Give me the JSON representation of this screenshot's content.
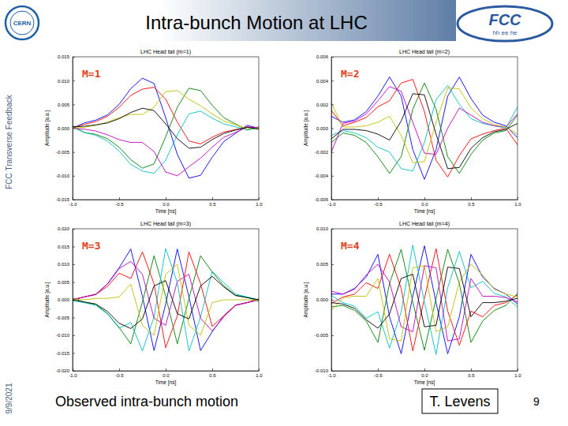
{
  "slide": {
    "title": "Intra-bunch Motion at LHC",
    "side_text": "FCC Transverse Feedback",
    "date": "9/9/2021",
    "caption": "Observed intra-bunch motion",
    "author": "T. Levens",
    "page": "9",
    "logo_left": "CERN",
    "logo_right": "FCC",
    "logo_right_sub": "hh ee he"
  },
  "chart_data": [
    {
      "type": "line",
      "title": "LHC Head tail (m=1)",
      "annotation": "M=1",
      "x_label": "Time [ns]",
      "y_label": "Amplitude [a.u.]",
      "x": [
        -1,
        -0.875,
        -0.75,
        -0.625,
        -0.5,
        -0.375,
        -0.25,
        -0.125,
        0,
        0.125,
        0.25,
        0.375,
        0.5,
        0.625,
        0.75,
        0.875,
        1
      ],
      "xlim": [
        -1,
        1
      ],
      "xticks": [
        {
          "value": -1,
          "label": "-1.0"
        },
        -0.5,
        {
          "value": 0,
          "label": "0.0"
        },
        0.5,
        {
          "value": 1,
          "label": "1.0"
        }
      ],
      "ylim": [
        -0.015,
        0.015
      ],
      "yticks": [
        -0.015,
        {
          "value": -0.01,
          "label": "-0.010"
        },
        -0.005,
        {
          "value": 0,
          "label": "0.000"
        },
        0.005,
        {
          "value": 0.01,
          "label": "0.010"
        },
        0.015
      ],
      "series": [
        {
          "color": "#0000ff",
          "values": [
            0,
            0.0011,
            0.0017,
            0.0028,
            0.005,
            0.0083,
            0.0105,
            0.0094,
            0.0022,
            -0.0055,
            -0.0105,
            -0.0099,
            -0.0061,
            -0.0028,
            -0.0011,
            0.0006,
            0
          ]
        },
        {
          "color": "#008000",
          "values": [
            0.0005,
            -0.0009,
            -0.0013,
            -0.0022,
            -0.004,
            -0.0066,
            -0.0084,
            -0.0075,
            -0.0018,
            0.0044,
            0.0084,
            0.0079,
            0.0048,
            0.0022,
            0.0009,
            -0.0004,
            0.0003
          ]
        },
        {
          "color": "#ff0000",
          "values": [
            0,
            0.0008,
            0.0014,
            0.0025,
            0.0044,
            0.0069,
            0.0082,
            0.0086,
            0.0061,
            0.0013,
            -0.0027,
            -0.0033,
            -0.0019,
            -0.0008,
            -0.0003,
            0.0003,
            0
          ]
        },
        {
          "color": "#00bfbf",
          "values": [
            0.0002,
            -0.0009,
            -0.0015,
            -0.0027,
            -0.0048,
            -0.0076,
            -0.009,
            -0.0095,
            -0.0067,
            -0.0014,
            0.003,
            0.0036,
            0.0021,
            0.0009,
            0.0003,
            -0.0003,
            -0.0001
          ]
        },
        {
          "color": "#bf00bf",
          "values": [
            0,
            -0.0002,
            -0.0006,
            -0.0014,
            -0.0024,
            -0.003,
            -0.003,
            -0.0049,
            -0.0092,
            -0.01,
            -0.0081,
            -0.0063,
            -0.004,
            -0.0019,
            -0.0009,
            0.0002,
            0.0001
          ]
        },
        {
          "color": "#bfbf00",
          "values": [
            0,
            0.0002,
            0.0006,
            0.0013,
            0.0022,
            0.0029,
            0.0029,
            0.0044,
            0.0077,
            0.0079,
            0.0061,
            0.0047,
            0.003,
            0.0015,
            0.0007,
            -0.0001,
            0
          ]
        },
        {
          "color": "#000000",
          "values": [
            0.0003,
            0.0004,
            0.0007,
            0.0011,
            0.002,
            0.0033,
            0.0042,
            0.0037,
            0.0009,
            -0.0022,
            -0.0042,
            -0.004,
            -0.0024,
            -0.0011,
            -0.0004,
            0.0002,
            -0.0002
          ]
        }
      ]
    },
    {
      "type": "line",
      "title": "LHC Head tail (m=2)",
      "annotation": "M=2",
      "x_label": "Time [ns]",
      "y_label": "Amplitude [a.u.]",
      "x": [
        -1,
        -0.875,
        -0.75,
        -0.625,
        -0.5,
        -0.375,
        -0.25,
        -0.125,
        0,
        0.125,
        0.25,
        0.375,
        0.5,
        0.625,
        0.75,
        0.875,
        1
      ],
      "xlim": [
        -1,
        1
      ],
      "xticks": [
        {
          "value": -1,
          "label": "-1.0"
        },
        -0.5,
        {
          "value": 0,
          "label": "0.0"
        },
        0.5,
        {
          "value": 1,
          "label": "1.0"
        }
      ],
      "ylim": [
        -0.006,
        0.006
      ],
      "yticks": [
        -0.006,
        -0.004,
        -0.002,
        {
          "value": 0,
          "label": "0.000"
        },
        0.002,
        0.004,
        0.006
      ],
      "series": [
        {
          "color": "#0000ff",
          "values": [
            0.001,
            0.0005,
            0.0007,
            0.0014,
            0.0027,
            0.0043,
            0.0027,
            -0.0018,
            -0.0043,
            -0.0018,
            0.0027,
            0.0043,
            0.0025,
            0.0011,
            0.0005,
            0.0002,
            -0.0008
          ]
        },
        {
          "color": "#008000",
          "values": [
            -0.0012,
            -0.0004,
            -0.0006,
            -0.0012,
            -0.0024,
            -0.0038,
            -0.0024,
            0.0016,
            0.0038,
            0.0016,
            -0.0024,
            -0.0038,
            -0.0022,
            -0.001,
            -0.0004,
            -0.0002,
            0.0011
          ]
        },
        {
          "color": "#ff0000",
          "values": [
            0.0015,
            0.0002,
            0.0005,
            0.0009,
            0.0018,
            0.0023,
            0.0038,
            0.0041,
            0.0014,
            -0.0027,
            -0.0041,
            -0.0023,
            -0.0009,
            -0.0005,
            -0.0002,
            0,
            -0.0014
          ]
        },
        {
          "color": "#00bfbf",
          "values": [
            -0.0006,
            -0.0002,
            -0.0004,
            -0.0008,
            -0.0016,
            -0.002,
            -0.0034,
            -0.0036,
            -0.0012,
            0.0024,
            0.0036,
            0.002,
            0.0008,
            0.0004,
            0.0002,
            0,
            0.0018
          ]
        },
        {
          "color": "#bf00bf",
          "values": [
            -0.002,
            0.0004,
            0.0006,
            0.0012,
            0.0023,
            0.0035,
            0.0031,
            0.0005,
            -0.0021,
            -0.0022,
            0,
            0.0017,
            0.0011,
            0.0005,
            0.0002,
            0.0001,
            0.0012
          ]
        },
        {
          "color": "#bfbf00",
          "values": [
            0.0021,
            0.0001,
            0.0001,
            0.0002,
            0.0005,
            0.001,
            -0.0006,
            -0.0029,
            -0.0028,
            0.0005,
            0.0034,
            0.0033,
            0.0017,
            0.0008,
            0.0003,
            0.0001,
            -0.0005
          ]
        },
        {
          "color": "#000000",
          "values": [
            -0.0009,
            -0.0001,
            -0.0001,
            -0.0002,
            -0.0005,
            -0.001,
            0.0006,
            0.0029,
            0.0028,
            -0.0005,
            -0.0034,
            -0.0033,
            -0.0017,
            -0.0008,
            -0.0003,
            -0.0001,
            0.0004
          ]
        }
      ]
    },
    {
      "type": "line",
      "title": "LHC Head tail (m=3)",
      "annotation": "M=3",
      "x_label": "Time [ns]",
      "y_label": "Amplitude [a.u.]",
      "x": [
        -1,
        -0.875,
        -0.75,
        -0.625,
        -0.5,
        -0.375,
        -0.25,
        -0.125,
        0,
        0.125,
        0.25,
        0.375,
        0.5,
        0.625,
        0.75,
        0.875,
        1
      ],
      "xlim": [
        -1,
        1
      ],
      "xticks": [
        {
          "value": -1,
          "label": "-1.0"
        },
        -0.5,
        {
          "value": 0,
          "label": "0.0"
        },
        0.5,
        {
          "value": 1,
          "label": "1.0"
        }
      ],
      "ylim": [
        -0.02,
        0.02
      ],
      "yticks": [
        {
          "value": -0.02,
          "label": "-0.020"
        },
        -0.015,
        {
          "value": -0.01,
          "label": "-0.010"
        },
        -0.005,
        {
          "value": 0,
          "label": "0.000"
        },
        0.005,
        {
          "value": 0.01,
          "label": "0.010"
        },
        0.015,
        {
          "value": 0.02,
          "label": "0.020"
        }
      ],
      "series": [
        {
          "color": "#0000ff",
          "values": [
            0,
            0.0008,
            0.0015,
            0.0045,
            0.009,
            0.0143,
            0.001,
            -0.0143,
            -0.0012,
            0.0143,
            0.0008,
            -0.0143,
            -0.009,
            -0.0045,
            -0.0015,
            -0.0008,
            0
          ]
        },
        {
          "color": "#008000",
          "values": [
            0.0005,
            -0.0007,
            -0.0013,
            -0.0039,
            -0.0078,
            -0.0124,
            -0.0006,
            0.0124,
            0.001,
            -0.0124,
            0.0004,
            0.0124,
            0.0078,
            0.0039,
            0.0013,
            0.0007,
            -0.0004
          ]
        },
        {
          "color": "#ff0000",
          "values": [
            0,
            0.0008,
            0.0015,
            0.0038,
            0.0075,
            0.006,
            0.0135,
            0.0045,
            -0.0135,
            -0.0045,
            0.0135,
            0.0045,
            -0.0075,
            -0.0045,
            -0.0015,
            -0.0008,
            0.0003
          ]
        },
        {
          "color": "#00bfbf",
          "values": [
            -0.0003,
            -0.0008,
            -0.0016,
            -0.004,
            -0.008,
            -0.0064,
            -0.0144,
            -0.0048,
            0.0144,
            0.0048,
            -0.0144,
            -0.0048,
            0.008,
            0.0048,
            0.0016,
            0.0008,
            0
          ]
        },
        {
          "color": "#bf00bf",
          "values": [
            0,
            0.0008,
            0.0016,
            0.0044,
            0.0088,
            0.0108,
            0.0072,
            -0.0052,
            -0.0072,
            0.0052,
            0.0072,
            -0.0052,
            -0.0088,
            -0.0048,
            -0.0016,
            -0.0008,
            0
          ]
        },
        {
          "color": "#bfbf00",
          "values": [
            0.0002,
            0,
            0.0004,
            0.0004,
            0.0008,
            0.0044,
            -0.0072,
            -0.01,
            0.0072,
            0.01,
            -0.0072,
            -0.01,
            -0.0008,
            0,
            0,
            0,
            -0.0002
          ]
        },
        {
          "color": "#000000",
          "values": [
            0,
            -0.0006,
            -0.0012,
            -0.0033,
            -0.0066,
            -0.0081,
            -0.0054,
            0.0039,
            0.0054,
            -0.0039,
            -0.0054,
            0.0039,
            0.0066,
            0.0036,
            0.0012,
            0.0006,
            0
          ]
        }
      ]
    },
    {
      "type": "line",
      "title": "LHC Head tail (m=4)",
      "annotation": "M=4",
      "x_label": "Time [ns]",
      "y_label": "Amplitude [a.u.]",
      "x": [
        -1,
        -0.875,
        -0.75,
        -0.625,
        -0.5,
        -0.375,
        -0.25,
        -0.125,
        0,
        0.125,
        0.25,
        0.375,
        0.5,
        0.625,
        0.75,
        0.875,
        1
      ],
      "xlim": [
        -1,
        1
      ],
      "xticks": [
        {
          "value": -1,
          "label": "-1.0"
        },
        -0.5,
        {
          "value": 0,
          "label": "0.0"
        },
        0.5,
        {
          "value": 1,
          "label": "1.0"
        }
      ],
      "ylim": [
        -0.01,
        0.01
      ],
      "yticks": [
        {
          "value": -0.01,
          "label": "-0.010"
        },
        -0.005,
        {
          "value": 0,
          "label": "0.000"
        },
        0.005,
        {
          "value": 0.01,
          "label": "0.010"
        }
      ],
      "series": [
        {
          "color": "#0000ff",
          "values": [
            0.0008,
            0.0008,
            0.0016,
            0.0032,
            0.0064,
            -0.0024,
            -0.0076,
            0.0005,
            0.0076,
            -0.0004,
            -0.0076,
            -0.0024,
            0.0064,
            0.0032,
            0.0016,
            0.0008,
            -0.0006
          ]
        },
        {
          "color": "#008000",
          "values": [
            -0.001,
            -0.0008,
            -0.0015,
            -0.003,
            -0.006,
            0.0023,
            0.0071,
            -0.0003,
            -0.0071,
            0.0002,
            0.0071,
            0.0023,
            -0.006,
            -0.003,
            -0.0015,
            -0.0008,
            0.0009
          ]
        },
        {
          "color": "#ff0000",
          "values": [
            -0.0005,
            0.0004,
            0.0008,
            0.0024,
            0.0016,
            0.0064,
            0.0016,
            -0.0072,
            0.0002,
            0.0072,
            -0.0016,
            -0.0064,
            -0.0016,
            -0.0024,
            -0.0008,
            -0.0004,
            0.0007
          ]
        },
        {
          "color": "#00bfbf",
          "values": [
            0.0006,
            -0.0004,
            -0.0009,
            -0.0026,
            -0.0017,
            -0.0068,
            -0.0017,
            0.0077,
            -0.0003,
            -0.0077,
            0.0017,
            0.0068,
            0.0017,
            0.0026,
            0.0009,
            0.0004,
            -0.001
          ]
        },
        {
          "color": "#bf00bf",
          "values": [
            0.0012,
            0.0008,
            0.0015,
            0.0035,
            0.005,
            0.0025,
            -0.0038,
            -0.0045,
            0.0048,
            0.0045,
            -0.0058,
            -0.0055,
            0.003,
            0.0005,
            0.0005,
            0.0003,
            -0.0003
          ]
        },
        {
          "color": "#bfbf00",
          "values": [
            -0.0015,
            0.0003,
            0.0005,
            0.0005,
            0.003,
            -0.0055,
            -0.0058,
            0.0045,
            0.0048,
            -0.0045,
            -0.0038,
            0.0025,
            0.005,
            0.0035,
            0.0015,
            0.0008,
            0.0004
          ]
        },
        {
          "color": "#000000",
          "values": [
            -0.0004,
            -0.0006,
            -0.0012,
            -0.0028,
            -0.004,
            -0.002,
            0.003,
            0.0036,
            -0.0038,
            -0.0036,
            0.0046,
            0.0044,
            -0.0024,
            -0.0004,
            -0.0004,
            -0.0002,
            0.0002
          ]
        }
      ]
    }
  ]
}
